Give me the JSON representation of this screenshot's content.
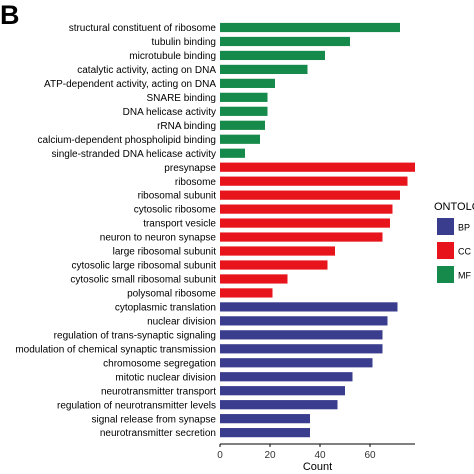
{
  "panel_label": "B",
  "chart_data": {
    "type": "bar",
    "orientation": "horizontal",
    "xlabel": "Count",
    "ylabel": "",
    "xlim": [
      0,
      78
    ],
    "xticks": [
      0,
      20,
      40,
      60
    ],
    "grid": false,
    "legend": {
      "title": "ONTOLOGY",
      "placement": "right",
      "entries": [
        {
          "name": "BP",
          "color": "#3a3c8e"
        },
        {
          "name": "CC",
          "color": "#e8141b"
        },
        {
          "name": "MF",
          "color": "#168a4a"
        }
      ]
    },
    "categories": [
      "structural constituent of ribosome",
      "tubulin binding",
      "microtubule binding",
      "catalytic activity, acting on DNA",
      "ATP-dependent activity, acting on DNA",
      "SNARE binding",
      "DNA helicase activity",
      "rRNA binding",
      "calcium-dependent phospholipid binding",
      "single-stranded DNA helicase activity",
      "presynapse",
      "ribosome",
      "ribosomal subunit",
      "cytosolic ribosome",
      "transport vesicle",
      "neuron to neuron synapse",
      "large ribosomal subunit",
      "cytosolic large ribosomal subunit",
      "cytosolic small ribosomal subunit",
      "polysomal ribosome",
      "cytoplasmic translation",
      "nuclear division",
      "regulation of trans-synaptic signaling",
      "modulation of chemical synaptic transmission",
      "chromosome segregation",
      "mitotic nuclear division",
      "neurotransmitter transport",
      "regulation of neurotransmitter levels",
      "signal release from synapse",
      "neurotransmitter secretion"
    ],
    "values": [
      72,
      52,
      42,
      35,
      22,
      19,
      19,
      18,
      16,
      10,
      78,
      75,
      72,
      69,
      68,
      65,
      46,
      43,
      27,
      21,
      71,
      67,
      65,
      65,
      61,
      53,
      50,
      47,
      36,
      36
    ],
    "ontology": [
      "MF",
      "MF",
      "MF",
      "MF",
      "MF",
      "MF",
      "MF",
      "MF",
      "MF",
      "MF",
      "CC",
      "CC",
      "CC",
      "CC",
      "CC",
      "CC",
      "CC",
      "CC",
      "CC",
      "CC",
      "BP",
      "BP",
      "BP",
      "BP",
      "BP",
      "BP",
      "BP",
      "BP",
      "BP",
      "BP"
    ]
  }
}
